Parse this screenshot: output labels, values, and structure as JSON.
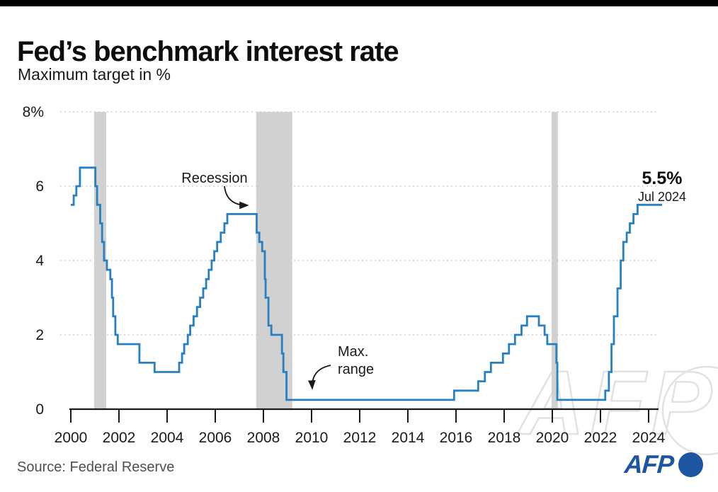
{
  "header": {
    "title": "Fed’s benchmark interest rate",
    "subtitle": "Maximum target in %"
  },
  "annotations": {
    "recession": "Recession",
    "max_range_line1": "Max.",
    "max_range_line2": "range",
    "latest_value": "5.5%",
    "latest_date": "Jul 2024"
  },
  "footer": {
    "source": "Source: Federal Reserve",
    "afp_logo_text": "AFP",
    "afp_blue": "#1d55a2"
  },
  "watermark_text": "AFP",
  "chart_data": {
    "type": "line",
    "step": true,
    "title": "Fed’s benchmark interest rate",
    "ylabel": "Maximum target in %",
    "xlabel": "",
    "xlim": [
      2000,
      2024.6
    ],
    "ylim": [
      0,
      8
    ],
    "grid": "horizontal-dotted",
    "legend": "none",
    "line_color": "#2780c2",
    "recession_band_color": "#d1d1d1",
    "gridline_color": "#dcdcdc",
    "xticks": [
      2000,
      2002,
      2004,
      2006,
      2008,
      2010,
      2012,
      2014,
      2016,
      2018,
      2020,
      2022,
      2024
    ],
    "yticks": [
      {
        "value": 8,
        "label": "8%"
      },
      {
        "value": 6,
        "label": "6"
      },
      {
        "value": 4,
        "label": "4"
      },
      {
        "value": 2,
        "label": "2"
      },
      {
        "value": 0,
        "label": "0"
      }
    ],
    "recession_bands": [
      [
        2000.97,
        2001.47
      ],
      [
        2007.7,
        2009.2
      ],
      [
        2019.97,
        2020.23
      ]
    ],
    "series": [
      {
        "name": "Fed benchmark interest rate, maximum target (%)",
        "points": [
          [
            2000.0,
            5.5
          ],
          [
            2000.12,
            5.75
          ],
          [
            2000.23,
            6.0
          ],
          [
            2000.38,
            6.5
          ],
          [
            2001.02,
            6.0
          ],
          [
            2001.09,
            5.5
          ],
          [
            2001.22,
            5.0
          ],
          [
            2001.3,
            4.5
          ],
          [
            2001.38,
            4.0
          ],
          [
            2001.5,
            3.75
          ],
          [
            2001.64,
            3.5
          ],
          [
            2001.71,
            3.0
          ],
          [
            2001.76,
            2.5
          ],
          [
            2001.85,
            2.0
          ],
          [
            2001.95,
            1.75
          ],
          [
            2002.85,
            1.25
          ],
          [
            2003.48,
            1.0
          ],
          [
            2004.5,
            1.25
          ],
          [
            2004.62,
            1.5
          ],
          [
            2004.71,
            1.75
          ],
          [
            2004.86,
            2.0
          ],
          [
            2004.96,
            2.25
          ],
          [
            2005.1,
            2.5
          ],
          [
            2005.24,
            2.75
          ],
          [
            2005.37,
            3.0
          ],
          [
            2005.5,
            3.25
          ],
          [
            2005.62,
            3.5
          ],
          [
            2005.73,
            3.75
          ],
          [
            2005.85,
            4.0
          ],
          [
            2005.96,
            4.25
          ],
          [
            2006.08,
            4.5
          ],
          [
            2006.23,
            4.75
          ],
          [
            2006.38,
            5.0
          ],
          [
            2006.5,
            5.25
          ],
          [
            2007.72,
            4.75
          ],
          [
            2007.83,
            4.5
          ],
          [
            2007.95,
            4.25
          ],
          [
            2008.06,
            3.5
          ],
          [
            2008.09,
            3.0
          ],
          [
            2008.21,
            2.25
          ],
          [
            2008.33,
            2.0
          ],
          [
            2008.77,
            1.5
          ],
          [
            2008.83,
            1.0
          ],
          [
            2008.96,
            0.25
          ],
          [
            2015.92,
            0.5
          ],
          [
            2016.92,
            0.75
          ],
          [
            2017.2,
            1.0
          ],
          [
            2017.45,
            1.25
          ],
          [
            2017.95,
            1.5
          ],
          [
            2018.2,
            1.75
          ],
          [
            2018.45,
            2.0
          ],
          [
            2018.72,
            2.25
          ],
          [
            2018.95,
            2.5
          ],
          [
            2019.44,
            2.25
          ],
          [
            2019.68,
            2.0
          ],
          [
            2019.79,
            1.75
          ],
          [
            2020.17,
            1.25
          ],
          [
            2020.21,
            0.25
          ],
          [
            2022.2,
            0.5
          ],
          [
            2022.35,
            1.0
          ],
          [
            2022.46,
            1.75
          ],
          [
            2022.56,
            2.5
          ],
          [
            2022.71,
            3.25
          ],
          [
            2022.84,
            4.0
          ],
          [
            2022.95,
            4.5
          ],
          [
            2023.09,
            4.75
          ],
          [
            2023.22,
            5.0
          ],
          [
            2023.37,
            5.25
          ],
          [
            2023.54,
            5.5
          ],
          [
            2024.56,
            5.5
          ]
        ]
      }
    ]
  }
}
